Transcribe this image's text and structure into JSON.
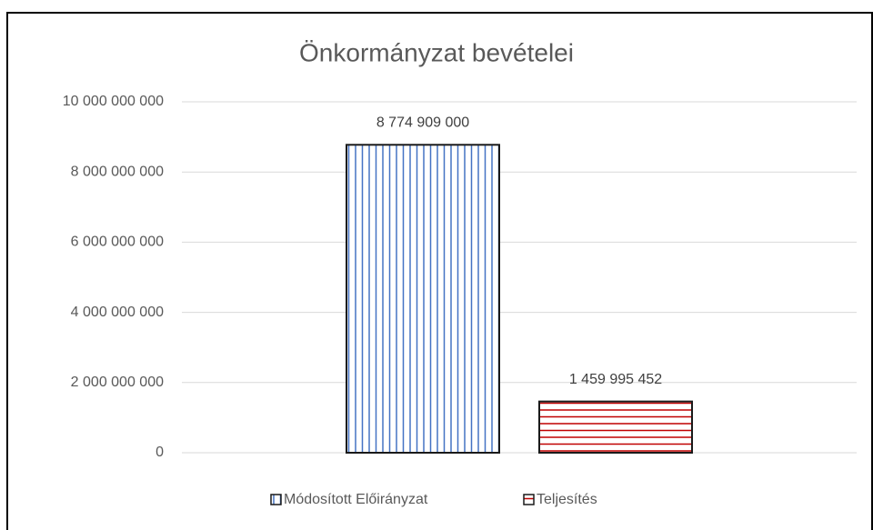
{
  "chart_data": {
    "type": "bar",
    "title": "Önkormányzat bevételei",
    "categories": [
      null
    ],
    "series": [
      {
        "name": "Módosított Előirányzat",
        "color": "#4472c4",
        "values": [
          8774909000
        ],
        "value_labels": [
          "8 774 909 000"
        ]
      },
      {
        "name": "Teljesítés",
        "color": "#c00000",
        "values": [
          1459995452
        ],
        "value_labels": [
          "1 459 995 452"
        ]
      }
    ],
    "ylim": [
      0,
      10000000000
    ],
    "yticks": [
      0,
      {
        "value": 2000000000,
        "label": "2 000 000 000"
      },
      {
        "value": 4000000000,
        "label": "4 000 000 000"
      },
      {
        "value": 6000000000,
        "label": "6 000 000 000"
      },
      {
        "value": 8000000000,
        "label": "8 000 000 000"
      },
      {
        "value": 10000000000,
        "label": "10 000 000 000"
      }
    ],
    "grid": true
  }
}
